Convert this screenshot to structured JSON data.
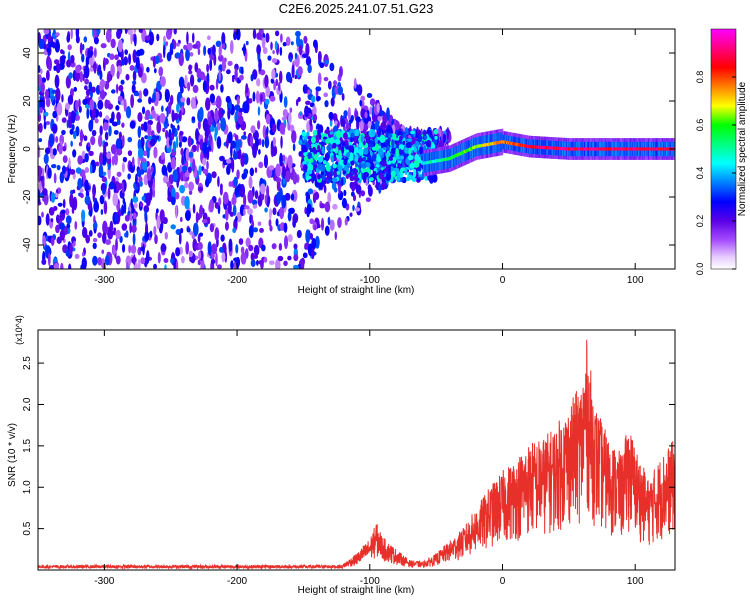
{
  "title": "C2E6.2025.241.07.51.G23",
  "chart_data": [
    {
      "type": "heatmap",
      "title": "C2E6.2025.241.07.51.G23",
      "xlabel": "Height of straight line (km)",
      "ylabel": "Frequency (Hz)",
      "xlim": [
        -350,
        130
      ],
      "ylim": [
        -50,
        50
      ],
      "x_ticks": [
        -300,
        -200,
        -100,
        0,
        100
      ],
      "x_tick_labels": [
        "-300",
        "-200",
        "-100",
        "0",
        "100"
      ],
      "y_ticks": [
        -40,
        -20,
        0,
        20,
        40
      ],
      "y_tick_labels": [
        "-40",
        "-20",
        "0",
        "20",
        "40"
      ],
      "colorbar": {
        "label": "Normalized spectral amplitude",
        "range": [
          0,
          1
        ],
        "ticks": [
          0.0,
          0.2,
          0.4,
          0.6,
          0.8
        ],
        "tick_labels": [
          "0.0",
          "0.2",
          "0.4",
          "0.6",
          "0.8"
        ],
        "colormap": "rainbow (white-violet-blue-cyan-green-yellow-red-magenta)"
      },
      "features": {
        "noise_region_x": [
          -350,
          -60
        ],
        "noise_level": 0.25,
        "signal_line_x": [
          -60,
          130
        ],
        "signal_freq_hz": [
          [
            -60,
            -6
          ],
          [
            -40,
            -4
          ],
          [
            -20,
            1
          ],
          [
            0,
            3
          ],
          [
            20,
            1
          ],
          [
            50,
            0
          ],
          [
            130,
            0
          ]
        ],
        "signal_peak_amplitude": 0.9
      }
    },
    {
      "type": "line",
      "xlabel": "Height of straight line (km)",
      "ylabel": "SNR (10 * v/v)",
      "y_multiplier_label": "(x10^4)",
      "xlim": [
        -350,
        130
      ],
      "ylim": [
        0,
        2.9
      ],
      "x_ticks": [
        -300,
        -200,
        -100,
        0,
        100
      ],
      "x_tick_labels": [
        "-300",
        "-200",
        "-100",
        "0",
        "100"
      ],
      "y_ticks": [
        0.5,
        1.0,
        1.5,
        2.0,
        2.5
      ],
      "y_tick_labels": [
        "0.5",
        "1.0",
        "1.5",
        "2.0",
        "2.5"
      ],
      "line_color": "#e8302b",
      "series": [
        {
          "name": "SNR",
          "x": [
            -350,
            -300,
            -250,
            -200,
            -150,
            -120,
            -110,
            -100,
            -95,
            -90,
            -80,
            -70,
            -60,
            -50,
            -40,
            -30,
            -20,
            -10,
            0,
            10,
            20,
            30,
            40,
            50,
            60,
            63,
            70,
            80,
            90,
            95,
            100,
            110,
            120,
            130
          ],
          "y": [
            0.03,
            0.04,
            0.03,
            0.04,
            0.05,
            0.08,
            0.2,
            0.38,
            0.58,
            0.4,
            0.25,
            0.12,
            0.1,
            0.2,
            0.35,
            0.5,
            0.75,
            1.0,
            1.2,
            1.35,
            1.55,
            1.6,
            1.75,
            2.0,
            2.3,
            2.85,
            2.0,
            1.6,
            1.4,
            1.8,
            1.5,
            1.1,
            1.4,
            1.6
          ]
        }
      ]
    }
  ]
}
